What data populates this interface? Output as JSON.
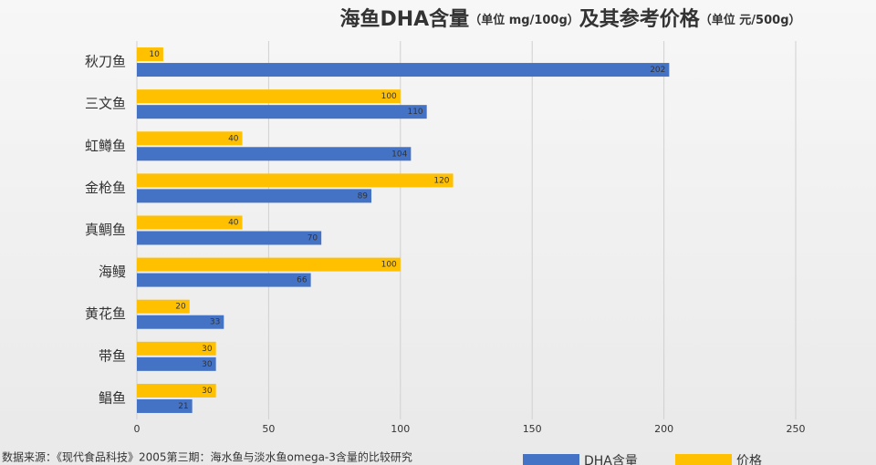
{
  "chart_data": {
    "type": "hbar",
    "title": [
      "海鱼DHA含量",
      "（单位 mg/100g）",
      "及其参考价格",
      "（单位 元/500g）"
    ],
    "categories": [
      "秋刀鱼",
      "三文鱼",
      "虹鳟鱼",
      "金枪鱼",
      "真鲷鱼",
      "海鳗",
      "黄花鱼",
      "带鱼",
      "鲳鱼"
    ],
    "series": [
      {
        "name": "DHA含量",
        "color": "#4472c4",
        "values": [
          202,
          110,
          104,
          89,
          70,
          66,
          33,
          30,
          21
        ]
      },
      {
        "name": "价格",
        "color": "#ffc000",
        "values": [
          10,
          100,
          40,
          120,
          40,
          100,
          20,
          30,
          30
        ]
      }
    ],
    "xlim": [
      0,
      250
    ],
    "xticks": [
      0,
      50,
      100,
      150,
      200,
      250
    ],
    "grid": true,
    "legend": "bottom",
    "source": "数据来源：《现代食品科技》2005第三期：海水鱼与淡水鱼omega-3含量的比较研究"
  }
}
